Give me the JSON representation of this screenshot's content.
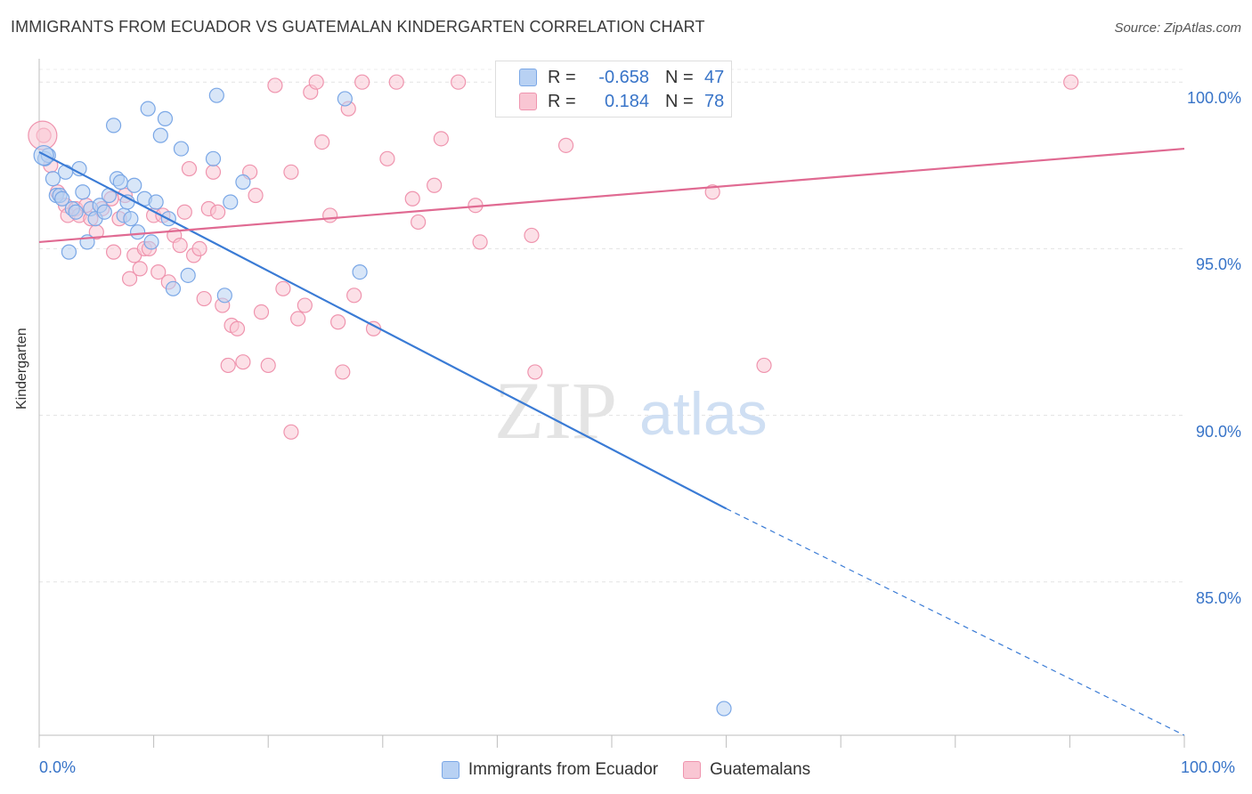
{
  "header": {
    "title": "IMMIGRANTS FROM ECUADOR VS GUATEMALAN KINDERGARTEN CORRELATION CHART",
    "source": "Source: ZipAtlas.com"
  },
  "watermark": {
    "zip": "ZIP",
    "atlas": "atlas"
  },
  "legend": {
    "r_label": "R =",
    "n_label": "N =",
    "rows": [
      {
        "r": "-0.658",
        "n": "47",
        "color": "#7aa7e6"
      },
      {
        "r": "0.184",
        "n": "78",
        "color": "#ef94ae"
      }
    ]
  },
  "chart_data": {
    "type": "scatter",
    "ylabel": "Kindergarten",
    "xlabel": "",
    "xlim": [
      0,
      100
    ],
    "ylim": [
      80.4,
      100.7
    ],
    "x_tick_labels": {
      "min": "0.0%",
      "max": "100.0%"
    },
    "y_ticks": [
      {
        "value": 100,
        "label": "100.0%"
      },
      {
        "value": 95,
        "label": "95.0%"
      },
      {
        "value": 90,
        "label": "90.0%"
      },
      {
        "value": 85,
        "label": "85.0%"
      }
    ],
    "grid": true,
    "series": [
      {
        "name": "Immigrants from Ecuador",
        "color": "#7aa7e6",
        "fill": "#b8d1f3",
        "line_color": "#3a7bd5",
        "trend": {
          "x0": 0,
          "y0": 97.9,
          "x1": 60,
          "y1": 87.2,
          "dashed_to_x": 100,
          "dashed_to_y": 80.4
        },
        "points": [
          [
            0.5,
            97.7
          ],
          [
            0.8,
            97.8
          ],
          [
            1.2,
            97.1
          ],
          [
            1.5,
            96.6
          ],
          [
            1.8,
            96.6
          ],
          [
            2.0,
            96.5
          ],
          [
            2.3,
            97.3
          ],
          [
            2.6,
            94.9
          ],
          [
            2.9,
            96.2
          ],
          [
            3.2,
            96.1
          ],
          [
            3.5,
            97.4
          ],
          [
            3.8,
            96.7
          ],
          [
            4.2,
            95.2
          ],
          [
            4.5,
            96.2
          ],
          [
            4.9,
            95.9
          ],
          [
            5.3,
            96.3
          ],
          [
            5.7,
            96.1
          ],
          [
            6.1,
            96.6
          ],
          [
            6.5,
            98.7
          ],
          [
            6.8,
            97.1
          ],
          [
            7.1,
            97.0
          ],
          [
            7.4,
            96.0
          ],
          [
            7.7,
            96.4
          ],
          [
            8.0,
            95.9
          ],
          [
            8.3,
            96.9
          ],
          [
            8.6,
            95.5
          ],
          [
            9.2,
            96.5
          ],
          [
            9.5,
            99.2
          ],
          [
            9.8,
            95.2
          ],
          [
            10.2,
            96.4
          ],
          [
            10.6,
            98.4
          ],
          [
            11.0,
            98.9
          ],
          [
            11.3,
            95.9
          ],
          [
            11.7,
            93.8
          ],
          [
            12.4,
            98.0
          ],
          [
            13.0,
            94.2
          ],
          [
            15.2,
            97.7
          ],
          [
            15.5,
            99.6
          ],
          [
            16.2,
            93.6
          ],
          [
            16.7,
            96.4
          ],
          [
            17.8,
            97.0
          ],
          [
            26.7,
            99.5
          ],
          [
            28.0,
            94.3
          ],
          [
            59.8,
            81.2
          ]
        ]
      },
      {
        "name": "Guatemalans",
        "color": "#ef94ae",
        "fill": "#f9c6d3",
        "line_color": "#e06a92",
        "trend": {
          "x0": 0,
          "y0": 95.2,
          "x1": 100,
          "y1": 98.0
        },
        "points": [
          [
            0.4,
            98.4
          ],
          [
            1.0,
            97.5
          ],
          [
            1.6,
            96.7
          ],
          [
            2.3,
            96.3
          ],
          [
            2.5,
            96.0
          ],
          [
            3.2,
            96.2
          ],
          [
            3.5,
            96.0
          ],
          [
            4.1,
            96.3
          ],
          [
            4.5,
            95.9
          ],
          [
            5.0,
            95.5
          ],
          [
            5.5,
            96.2
          ],
          [
            6.3,
            96.5
          ],
          [
            6.5,
            94.9
          ],
          [
            7.0,
            95.9
          ],
          [
            7.5,
            96.6
          ],
          [
            7.9,
            94.1
          ],
          [
            8.3,
            94.8
          ],
          [
            8.8,
            94.4
          ],
          [
            9.2,
            95.0
          ],
          [
            9.6,
            95.0
          ],
          [
            10.0,
            96.0
          ],
          [
            10.4,
            94.3
          ],
          [
            10.8,
            96.0
          ],
          [
            11.3,
            94.0
          ],
          [
            11.8,
            95.4
          ],
          [
            12.3,
            95.1
          ],
          [
            12.7,
            96.1
          ],
          [
            13.1,
            97.4
          ],
          [
            13.5,
            94.8
          ],
          [
            14.0,
            95.0
          ],
          [
            14.4,
            93.5
          ],
          [
            14.8,
            96.2
          ],
          [
            15.2,
            97.3
          ],
          [
            15.6,
            96.1
          ],
          [
            16.0,
            93.3
          ],
          [
            16.5,
            91.5
          ],
          [
            16.8,
            92.7
          ],
          [
            17.3,
            92.6
          ],
          [
            17.8,
            91.6
          ],
          [
            18.4,
            97.3
          ],
          [
            18.9,
            96.6
          ],
          [
            19.4,
            93.1
          ],
          [
            20.0,
            91.5
          ],
          [
            20.6,
            99.9
          ],
          [
            21.3,
            93.8
          ],
          [
            22.0,
            97.3
          ],
          [
            22.6,
            92.9
          ],
          [
            23.2,
            93.3
          ],
          [
            23.7,
            99.7
          ],
          [
            24.2,
            100.0
          ],
          [
            24.7,
            98.2
          ],
          [
            25.4,
            96.0
          ],
          [
            26.1,
            92.8
          ],
          [
            26.5,
            91.3
          ],
          [
            27.0,
            99.2
          ],
          [
            27.5,
            93.6
          ],
          [
            28.2,
            100.0
          ],
          [
            29.2,
            92.6
          ],
          [
            30.4,
            97.7
          ],
          [
            31.2,
            100.0
          ],
          [
            32.6,
            96.5
          ],
          [
            33.1,
            95.8
          ],
          [
            34.5,
            96.9
          ],
          [
            35.1,
            98.3
          ],
          [
            36.6,
            100.0
          ],
          [
            38.1,
            96.3
          ],
          [
            38.5,
            95.2
          ],
          [
            43.0,
            95.4
          ],
          [
            43.3,
            91.3
          ],
          [
            46.0,
            98.1
          ],
          [
            57.2,
            100.0
          ],
          [
            58.8,
            96.7
          ],
          [
            59.6,
            100.0
          ],
          [
            63.3,
            91.5
          ],
          [
            90.1,
            100.0
          ],
          [
            22.0,
            89.5
          ]
        ]
      }
    ]
  }
}
